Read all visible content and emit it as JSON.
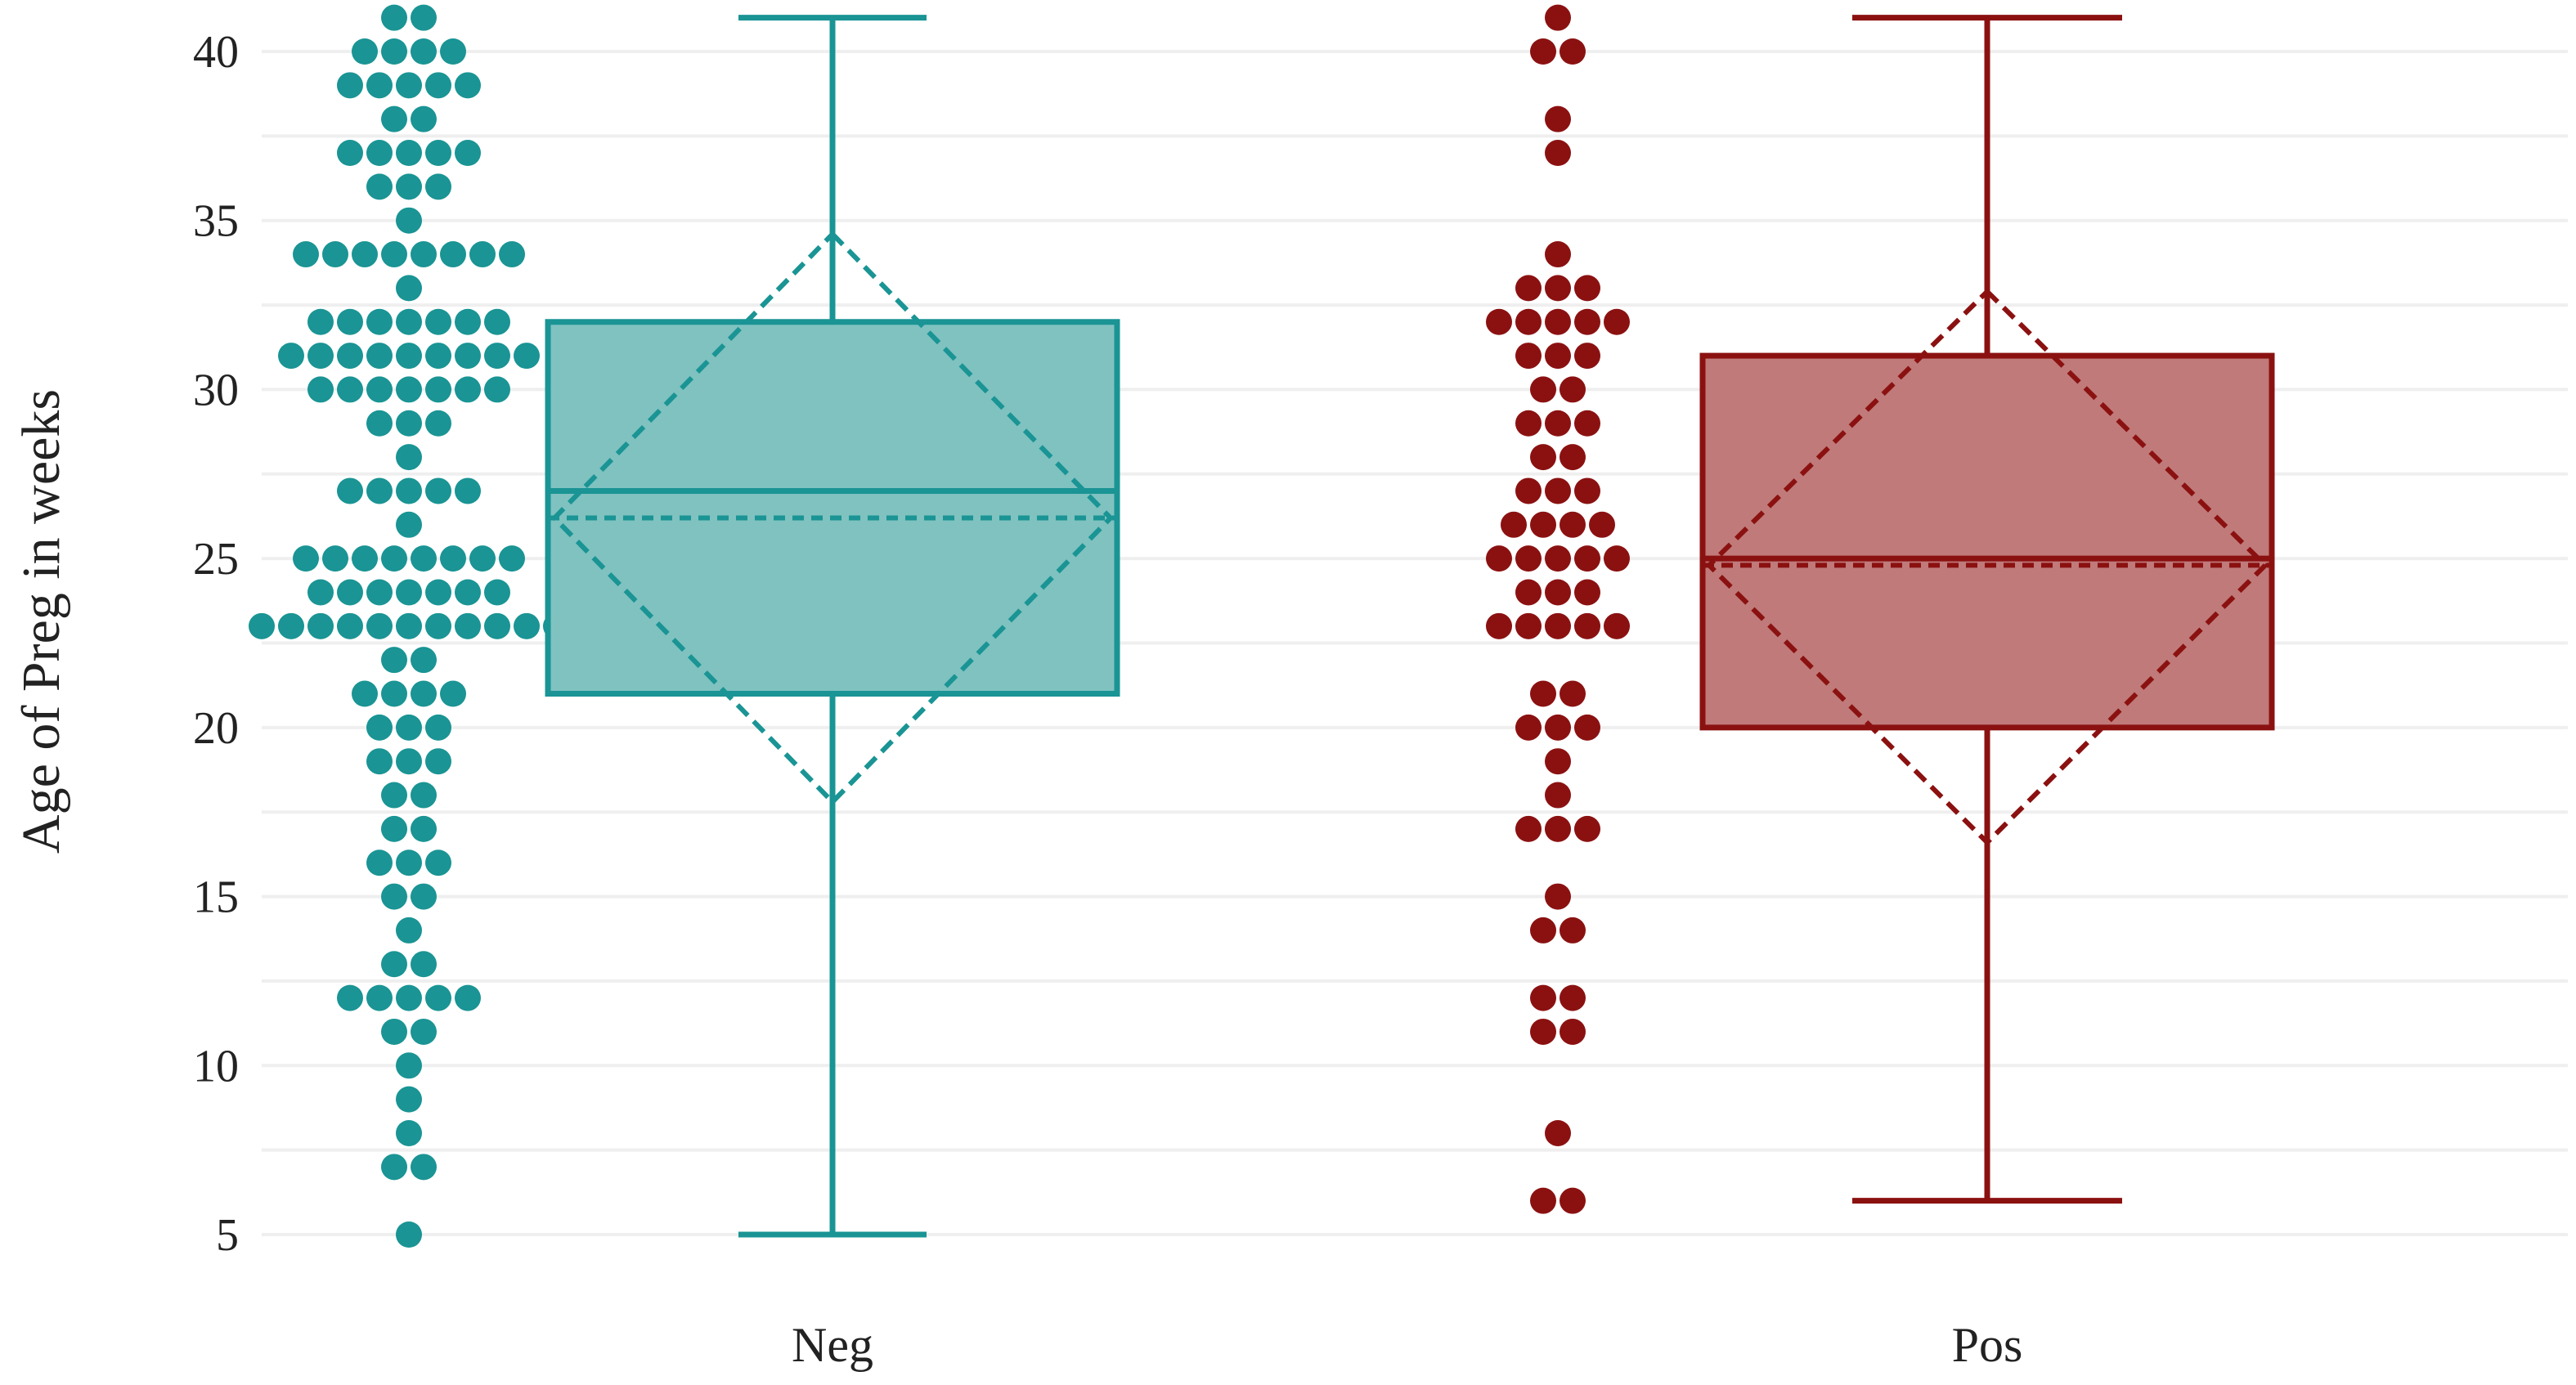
{
  "chart_data": {
    "type": "box",
    "xlabel": "",
    "ylabel": "Age of Preg in weeks",
    "ylim": [
      3,
      41.5
    ],
    "yticks": [
      5,
      10,
      15,
      20,
      25,
      30,
      35,
      40
    ],
    "grid": "horizontal",
    "categories": [
      "Neg",
      "Pos"
    ],
    "groups": [
      {
        "label": "Neg",
        "color": "#1a9494",
        "fill": "#7fc2c0",
        "box": {
          "min": 5,
          "q1": 21,
          "median": 27,
          "q3": 32,
          "max": 41
        },
        "mean": 26.2,
        "mean_diamond": [
          17.8,
          34.6
        ],
        "points": [
          [
            40,
            4
          ],
          [
            41,
            2
          ],
          [
            39,
            5
          ],
          [
            38,
            2
          ],
          [
            37,
            5
          ],
          [
            36,
            3
          ],
          [
            35,
            1
          ],
          [
            34,
            8
          ],
          [
            33,
            1
          ],
          [
            32,
            7
          ],
          [
            31,
            9
          ],
          [
            30,
            7
          ],
          [
            29,
            3
          ],
          [
            28,
            1
          ],
          [
            27,
            5
          ],
          [
            26,
            1
          ],
          [
            25,
            8
          ],
          [
            24,
            7
          ],
          [
            23,
            11
          ],
          [
            22,
            2
          ],
          [
            21,
            4
          ],
          [
            20,
            3
          ],
          [
            19,
            3
          ],
          [
            18,
            2
          ],
          [
            17,
            2
          ],
          [
            16,
            3
          ],
          [
            15,
            2
          ],
          [
            14,
            1
          ],
          [
            13,
            2
          ],
          [
            12,
            5
          ],
          [
            11,
            2
          ],
          [
            10,
            1
          ],
          [
            9,
            1
          ],
          [
            8,
            1
          ],
          [
            7,
            2
          ],
          [
            5,
            1
          ]
        ]
      },
      {
        "label": "Pos",
        "color": "#8b1111",
        "fill": "#c07a7a",
        "box": {
          "min": 6,
          "q1": 20,
          "median": 25,
          "q3": 31,
          "max": 41
        },
        "mean": 24.8,
        "mean_diamond": [
          16.6,
          32.9
        ],
        "points": [
          [
            41,
            1
          ],
          [
            40,
            2
          ],
          [
            38,
            1
          ],
          [
            37,
            1
          ],
          [
            34,
            1
          ],
          [
            33,
            3
          ],
          [
            32,
            5
          ],
          [
            31,
            3
          ],
          [
            30,
            2
          ],
          [
            29,
            3
          ],
          [
            28,
            2
          ],
          [
            27,
            3
          ],
          [
            26,
            4
          ],
          [
            25,
            5
          ],
          [
            24,
            3
          ],
          [
            23,
            5
          ],
          [
            21,
            2
          ],
          [
            20,
            3
          ],
          [
            19,
            1
          ],
          [
            18,
            1
          ],
          [
            17,
            3
          ],
          [
            15,
            1
          ],
          [
            14,
            2
          ],
          [
            12,
            2
          ],
          [
            11,
            2
          ],
          [
            8,
            1
          ],
          [
            6,
            2
          ]
        ]
      }
    ]
  }
}
